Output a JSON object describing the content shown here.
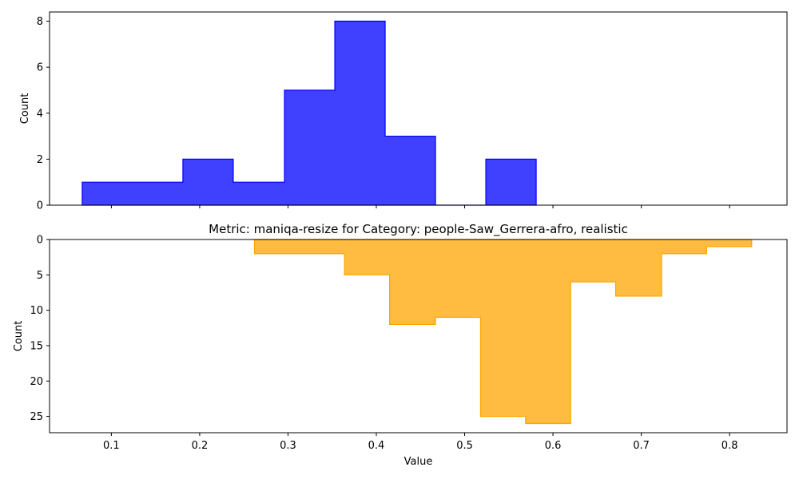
{
  "chart_data": [
    {
      "type": "histogram-step",
      "title": "",
      "xlabel": "",
      "ylabel": "Count",
      "color": "#0000ff",
      "fill_alpha": 0.75,
      "xlim": [
        0.03,
        0.865
      ],
      "ylim": [
        0,
        8.4
      ],
      "yticks": [
        0,
        2,
        4,
        6,
        8
      ],
      "inverted_y": false,
      "bin_edges": [
        0.067,
        0.124,
        0.181,
        0.238,
        0.296,
        0.353,
        0.41,
        0.467,
        0.524,
        0.581
      ],
      "counts": [
        1,
        1,
        2,
        1,
        5,
        8,
        3,
        0,
        2
      ],
      "series_name": ""
    },
    {
      "type": "histogram-step",
      "title": "Metric: maniqa-resize for Category: people-Saw_Gerrera-afro, realistic",
      "xlabel": "Value",
      "ylabel": "Count",
      "color": "#ffa500",
      "fill_alpha": 0.75,
      "xlim": [
        0.03,
        0.865
      ],
      "ylim": [
        0,
        27.3
      ],
      "yticks": [
        0,
        5,
        10,
        15,
        20,
        25
      ],
      "inverted_y": true,
      "xticks": [
        0.1,
        0.2,
        0.3,
        0.4,
        0.5,
        0.6,
        0.7,
        0.8
      ],
      "bin_edges": [
        0.262,
        0.313,
        0.364,
        0.415,
        0.467,
        0.518,
        0.569,
        0.62,
        0.671,
        0.723,
        0.774,
        0.825
      ],
      "counts": [
        2,
        2,
        5,
        12,
        11,
        25,
        26,
        6,
        8,
        2,
        1
      ],
      "series_name": ""
    }
  ]
}
